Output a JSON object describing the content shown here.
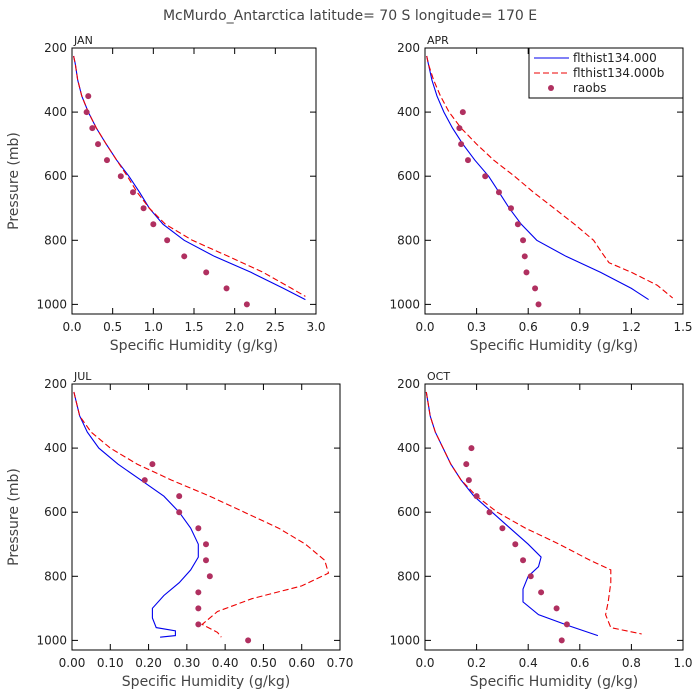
{
  "figure_title": "McMurdo_Antarctica  latitude= 70 S longitude= 170 E",
  "colors": {
    "model": "#0000ee",
    "model_b": "#ee0000",
    "obs": "#b03060"
  },
  "legend": {
    "position": "top-right of APR panel",
    "entries": [
      {
        "label": "flthist134.000",
        "style": "solid",
        "color": "#0000ee"
      },
      {
        "label": "flthist134.000b",
        "style": "dashed",
        "color": "#ee0000"
      },
      {
        "label": "raobs",
        "style": "dot",
        "color": "#b03060"
      }
    ]
  },
  "chart_data": [
    {
      "type": "line",
      "panel": "JAN",
      "title": "JAN",
      "xlabel": "Specific Humidity (g/kg)",
      "ylabel": "Pressure (mb)",
      "xlim": [
        0,
        3.0
      ],
      "ylim": [
        200,
        1030
      ],
      "y_inverted": true,
      "xticks": [
        0.0,
        0.5,
        1.0,
        1.5,
        2.0,
        2.5,
        3.0
      ],
      "xtick_labels": [
        "0.0",
        "0.5",
        "1.0",
        "1.5",
        "2.0",
        "2.5",
        "3.0"
      ],
      "yticks": [
        200,
        400,
        600,
        800,
        1000
      ],
      "ytick_labels": [
        "200",
        "400",
        "600",
        "800",
        "1000"
      ],
      "series": [
        {
          "name": "flthist134.000",
          "style": "solid",
          "color": "#0000ee",
          "points": [
            [
              0.02,
              225
            ],
            [
              0.04,
              250
            ],
            [
              0.07,
              300
            ],
            [
              0.12,
              350
            ],
            [
              0.2,
              400
            ],
            [
              0.3,
              450
            ],
            [
              0.42,
              500
            ],
            [
              0.55,
              550
            ],
            [
              0.7,
              600
            ],
            [
              0.83,
              650
            ],
            [
              0.95,
              700
            ],
            [
              1.12,
              750
            ],
            [
              1.38,
              800
            ],
            [
              1.75,
              850
            ],
            [
              2.2,
              900
            ],
            [
              2.6,
              950
            ],
            [
              2.87,
              985
            ]
          ]
        },
        {
          "name": "flthist134.000b",
          "style": "dashed",
          "color": "#ee0000",
          "points": [
            [
              0.02,
              225
            ],
            [
              0.04,
              250
            ],
            [
              0.07,
              300
            ],
            [
              0.12,
              350
            ],
            [
              0.2,
              400
            ],
            [
              0.3,
              450
            ],
            [
              0.42,
              500
            ],
            [
              0.55,
              550
            ],
            [
              0.68,
              600
            ],
            [
              0.8,
              650
            ],
            [
              0.95,
              700
            ],
            [
              1.15,
              750
            ],
            [
              1.48,
              800
            ],
            [
              1.92,
              850
            ],
            [
              2.35,
              900
            ],
            [
              2.7,
              950
            ],
            [
              2.87,
              975
            ]
          ]
        },
        {
          "name": "raobs",
          "style": "dot",
          "color": "#b03060",
          "points": [
            [
              0.2,
              350
            ],
            [
              0.18,
              400
            ],
            [
              0.25,
              450
            ],
            [
              0.32,
              500
            ],
            [
              0.43,
              550
            ],
            [
              0.6,
              600
            ],
            [
              0.75,
              650
            ],
            [
              0.88,
              700
            ],
            [
              1.0,
              750
            ],
            [
              1.17,
              800
            ],
            [
              1.38,
              850
            ],
            [
              1.65,
              900
            ],
            [
              1.9,
              950
            ],
            [
              2.15,
              1000
            ]
          ]
        }
      ]
    },
    {
      "type": "line",
      "panel": "APR",
      "title": "APR",
      "xlabel": "Specific Humidity (g/kg)",
      "ylabel": "",
      "xlim": [
        0,
        1.5
      ],
      "ylim": [
        200,
        1030
      ],
      "y_inverted": true,
      "xticks": [
        0.0,
        0.3,
        0.6,
        0.9,
        1.2,
        1.5
      ],
      "xtick_labels": [
        "0.0",
        "0.3",
        "0.6",
        "0.9",
        "1.2",
        "1.5"
      ],
      "yticks": [
        200,
        400,
        600,
        800,
        1000
      ],
      "ytick_labels": [
        "200",
        "400",
        "600",
        "800",
        "1000"
      ],
      "series": [
        {
          "name": "flthist134.000",
          "style": "solid",
          "color": "#0000ee",
          "points": [
            [
              0.01,
              225
            ],
            [
              0.02,
              250
            ],
            [
              0.04,
              300
            ],
            [
              0.07,
              350
            ],
            [
              0.11,
              400
            ],
            [
              0.16,
              450
            ],
            [
              0.22,
              500
            ],
            [
              0.29,
              550
            ],
            [
              0.37,
              600
            ],
            [
              0.43,
              650
            ],
            [
              0.49,
              700
            ],
            [
              0.56,
              750
            ],
            [
              0.65,
              800
            ],
            [
              0.82,
              850
            ],
            [
              1.02,
              900
            ],
            [
              1.2,
              950
            ],
            [
              1.3,
              985
            ]
          ]
        },
        {
          "name": "flthist134.000b",
          "style": "dashed",
          "color": "#ee0000",
          "points": [
            [
              0.01,
              225
            ],
            [
              0.02,
              250
            ],
            [
              0.05,
              300
            ],
            [
              0.09,
              350
            ],
            [
              0.14,
              400
            ],
            [
              0.21,
              450
            ],
            [
              0.3,
              500
            ],
            [
              0.4,
              550
            ],
            [
              0.52,
              600
            ],
            [
              0.63,
              650
            ],
            [
              0.75,
              700
            ],
            [
              0.87,
              750
            ],
            [
              0.98,
              800
            ],
            [
              1.03,
              840
            ],
            [
              1.07,
              870
            ],
            [
              1.2,
              900
            ],
            [
              1.35,
              940
            ],
            [
              1.44,
              980
            ]
          ]
        },
        {
          "name": "raobs",
          "style": "dot",
          "color": "#b03060",
          "points": [
            [
              0.22,
              400
            ],
            [
              0.2,
              450
            ],
            [
              0.21,
              500
            ],
            [
              0.25,
              550
            ],
            [
              0.35,
              600
            ],
            [
              0.43,
              650
            ],
            [
              0.5,
              700
            ],
            [
              0.54,
              750
            ],
            [
              0.57,
              800
            ],
            [
              0.58,
              850
            ],
            [
              0.59,
              900
            ],
            [
              0.64,
              950
            ],
            [
              0.66,
              1000
            ]
          ]
        }
      ]
    },
    {
      "type": "line",
      "panel": "JUL",
      "title": "JUL",
      "xlabel": "Specific Humidity (g/kg)",
      "ylabel": "Pressure (mb)",
      "xlim": [
        0,
        0.7
      ],
      "ylim": [
        200,
        1030
      ],
      "y_inverted": true,
      "xticks": [
        0.0,
        0.1,
        0.2,
        0.3,
        0.4,
        0.5,
        0.6,
        0.7
      ],
      "xtick_labels": [
        "0.00",
        "0.10",
        "0.20",
        "0.30",
        "0.40",
        "0.50",
        "0.60",
        "0.70"
      ],
      "yticks": [
        200,
        400,
        600,
        800,
        1000
      ],
      "ytick_labels": [
        "200",
        "400",
        "600",
        "800",
        "1000"
      ],
      "series": [
        {
          "name": "flthist134.000",
          "style": "solid",
          "color": "#0000ee",
          "points": [
            [
              0.005,
              225
            ],
            [
              0.01,
              250
            ],
            [
              0.02,
              300
            ],
            [
              0.04,
              350
            ],
            [
              0.07,
              400
            ],
            [
              0.12,
              450
            ],
            [
              0.18,
              500
            ],
            [
              0.24,
              550
            ],
            [
              0.28,
              600
            ],
            [
              0.31,
              650
            ],
            [
              0.33,
              700
            ],
            [
              0.33,
              740
            ],
            [
              0.31,
              780
            ],
            [
              0.28,
              820
            ],
            [
              0.24,
              860
            ],
            [
              0.21,
              900
            ],
            [
              0.21,
              930
            ],
            [
              0.22,
              960
            ],
            [
              0.27,
              970
            ],
            [
              0.27,
              985
            ],
            [
              0.23,
              990
            ]
          ]
        },
        {
          "name": "flthist134.000b",
          "style": "dashed",
          "color": "#ee0000",
          "points": [
            [
              0.005,
              225
            ],
            [
              0.01,
              250
            ],
            [
              0.02,
              300
            ],
            [
              0.05,
              350
            ],
            [
              0.1,
              400
            ],
            [
              0.17,
              450
            ],
            [
              0.26,
              500
            ],
            [
              0.36,
              550
            ],
            [
              0.45,
              600
            ],
            [
              0.54,
              650
            ],
            [
              0.61,
              700
            ],
            [
              0.66,
              750
            ],
            [
              0.67,
              790
            ],
            [
              0.6,
              830
            ],
            [
              0.47,
              870
            ],
            [
              0.38,
              910
            ],
            [
              0.34,
              950
            ],
            [
              0.38,
              975
            ],
            [
              0.39,
              990
            ]
          ]
        },
        {
          "name": "raobs",
          "style": "dot",
          "color": "#b03060",
          "points": [
            [
              0.21,
              450
            ],
            [
              0.19,
              500
            ],
            [
              0.28,
              550
            ],
            [
              0.28,
              600
            ],
            [
              0.33,
              650
            ],
            [
              0.35,
              700
            ],
            [
              0.35,
              750
            ],
            [
              0.36,
              800
            ],
            [
              0.33,
              850
            ],
            [
              0.33,
              900
            ],
            [
              0.33,
              950
            ],
            [
              0.46,
              1000
            ]
          ]
        }
      ]
    },
    {
      "type": "line",
      "panel": "OCT",
      "title": "OCT",
      "xlabel": "Specific Humidity (g/kg)",
      "ylabel": "",
      "xlim": [
        0,
        1.0
      ],
      "ylim": [
        200,
        1030
      ],
      "y_inverted": true,
      "xticks": [
        0.0,
        0.2,
        0.4,
        0.6,
        0.8,
        1.0
      ],
      "xtick_labels": [
        "0.0",
        "0.2",
        "0.4",
        "0.6",
        "0.8",
        "1.0"
      ],
      "yticks": [
        200,
        400,
        600,
        800,
        1000
      ],
      "ytick_labels": [
        "200",
        "400",
        "600",
        "800",
        "1000"
      ],
      "series": [
        {
          "name": "flthist134.000",
          "style": "solid",
          "color": "#0000ee",
          "points": [
            [
              0.005,
              225
            ],
            [
              0.01,
              250
            ],
            [
              0.02,
              300
            ],
            [
              0.04,
              350
            ],
            [
              0.07,
              400
            ],
            [
              0.1,
              450
            ],
            [
              0.14,
              500
            ],
            [
              0.19,
              550
            ],
            [
              0.26,
              600
            ],
            [
              0.33,
              650
            ],
            [
              0.4,
              700
            ],
            [
              0.45,
              740
            ],
            [
              0.44,
              770
            ],
            [
              0.4,
              800
            ],
            [
              0.38,
              840
            ],
            [
              0.38,
              880
            ],
            [
              0.44,
              920
            ],
            [
              0.56,
              955
            ],
            [
              0.67,
              985
            ]
          ]
        },
        {
          "name": "flthist134.000b",
          "style": "dashed",
          "color": "#ee0000",
          "points": [
            [
              0.005,
              225
            ],
            [
              0.01,
              250
            ],
            [
              0.02,
              300
            ],
            [
              0.04,
              350
            ],
            [
              0.07,
              400
            ],
            [
              0.1,
              450
            ],
            [
              0.14,
              500
            ],
            [
              0.2,
              550
            ],
            [
              0.28,
              600
            ],
            [
              0.39,
              650
            ],
            [
              0.52,
              700
            ],
            [
              0.64,
              750
            ],
            [
              0.72,
              780
            ],
            [
              0.72,
              820
            ],
            [
              0.71,
              880
            ],
            [
              0.7,
              920
            ],
            [
              0.72,
              960
            ],
            [
              0.84,
              980
            ]
          ]
        },
        {
          "name": "raobs",
          "style": "dot",
          "color": "#b03060",
          "points": [
            [
              0.18,
              400
            ],
            [
              0.16,
              450
            ],
            [
              0.17,
              500
            ],
            [
              0.2,
              550
            ],
            [
              0.25,
              600
            ],
            [
              0.3,
              650
            ],
            [
              0.35,
              700
            ],
            [
              0.38,
              750
            ],
            [
              0.41,
              800
            ],
            [
              0.45,
              850
            ],
            [
              0.51,
              900
            ],
            [
              0.55,
              950
            ],
            [
              0.53,
              1000
            ]
          ]
        }
      ]
    }
  ]
}
